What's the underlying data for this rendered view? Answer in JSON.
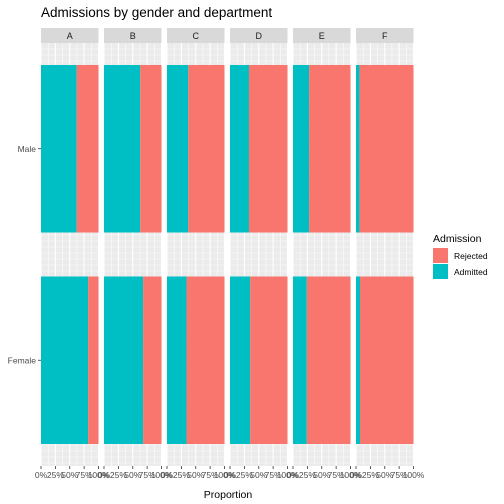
{
  "chart_data": {
    "type": "bar",
    "orientation": "horizontal",
    "stacked": true,
    "title": "Admissions by gender and department",
    "xlabel": "Proportion",
    "ylabel": "",
    "xlim": [
      0,
      1
    ],
    "x_ticks": [
      "0%",
      "25%",
      "50%",
      "75%",
      "100%"
    ],
    "facets": [
      "A",
      "B",
      "C",
      "D",
      "E",
      "F"
    ],
    "categories": [
      "Male",
      "Female"
    ],
    "series": [
      {
        "name": "Admitted",
        "color": "#00BFC4",
        "values": {
          "A": {
            "Male": 0.62,
            "Female": 0.82
          },
          "B": {
            "Male": 0.63,
            "Female": 0.68
          },
          "C": {
            "Male": 0.37,
            "Female": 0.34
          },
          "D": {
            "Male": 0.33,
            "Female": 0.35
          },
          "E": {
            "Male": 0.28,
            "Female": 0.24
          },
          "F": {
            "Male": 0.06,
            "Female": 0.07
          }
        }
      },
      {
        "name": "Rejected",
        "color": "#F8766D",
        "values": {
          "A": {
            "Male": 0.38,
            "Female": 0.18
          },
          "B": {
            "Male": 0.37,
            "Female": 0.32
          },
          "C": {
            "Male": 0.63,
            "Female": 0.66
          },
          "D": {
            "Male": 0.67,
            "Female": 0.65
          },
          "E": {
            "Male": 0.72,
            "Female": 0.76
          },
          "F": {
            "Male": 0.94,
            "Female": 0.93
          }
        }
      }
    ],
    "legend": {
      "title": "Admission",
      "entries": [
        "Rejected",
        "Admitted"
      ],
      "position": "right"
    },
    "grid": true,
    "panel_background": "#EBEBEB",
    "strip_background": "#D9D9D9"
  }
}
